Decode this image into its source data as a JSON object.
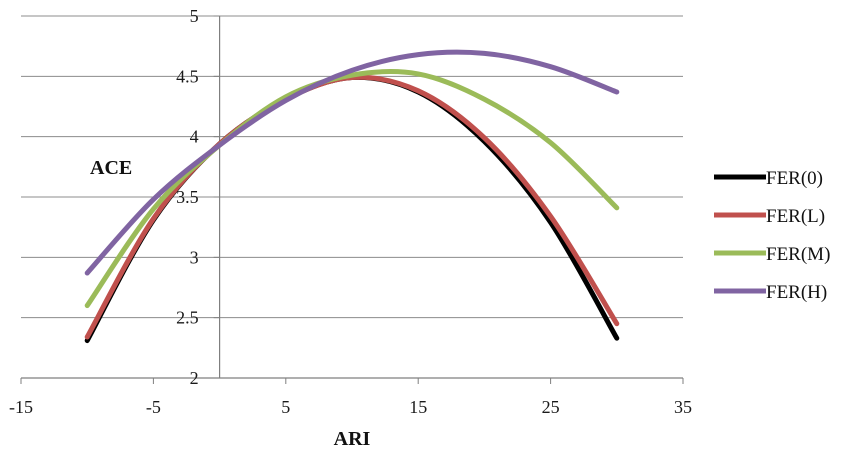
{
  "chart_data": {
    "type": "line",
    "title": "",
    "xlabel": "ARI",
    "ylabel": "ACE",
    "xlim": [
      -15,
      35
    ],
    "ylim": [
      2,
      5
    ],
    "x_ticks": [
      -15,
      -5,
      5,
      15,
      25,
      35
    ],
    "y_ticks": [
      2,
      2.5,
      3,
      3.5,
      4,
      4.5,
      5
    ],
    "y_tick_labels": [
      "2",
      "2.5",
      "3",
      "3.5",
      "4",
      "4.5",
      "5"
    ],
    "grid": "horizontal",
    "legend_position": "right",
    "x": [
      -10,
      -5,
      0,
      5,
      10,
      15,
      20,
      25,
      30
    ],
    "series": [
      {
        "name": "FER(0)",
        "color": "#000000",
        "values": [
          2.31,
          3.31,
          3.94,
          4.31,
          4.49,
          4.37,
          3.96,
          3.29,
          2.33
        ]
      },
      {
        "name": "FER(L)",
        "color": "#c0504d",
        "values": [
          2.34,
          3.32,
          3.94,
          4.31,
          4.49,
          4.38,
          3.99,
          3.34,
          2.45
        ]
      },
      {
        "name": "FER(M)",
        "color": "#9bbb59",
        "values": [
          2.6,
          3.4,
          3.93,
          4.33,
          4.51,
          4.52,
          4.31,
          3.95,
          3.41
        ]
      },
      {
        "name": "FER(H)",
        "color": "#8064a2",
        "values": [
          2.87,
          3.48,
          3.93,
          4.3,
          4.55,
          4.68,
          4.69,
          4.58,
          4.37
        ]
      }
    ]
  }
}
